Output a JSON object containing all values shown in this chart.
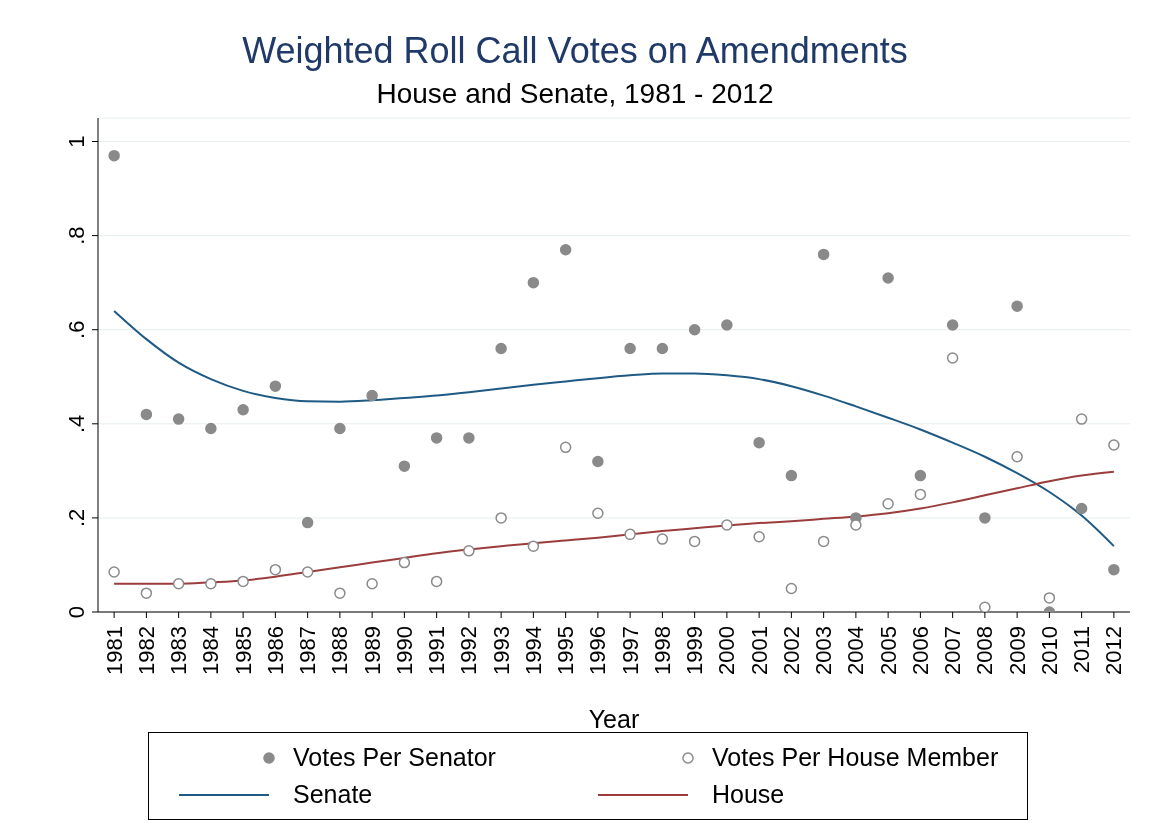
{
  "chart_data": {
    "type": "scatter",
    "title": "Weighted Roll Call Votes on Amendments",
    "subtitle": "House and Senate, 1981 - 2012",
    "xlabel": "Year",
    "categories": [
      "1981",
      "1982",
      "1983",
      "1984",
      "1985",
      "1986",
      "1987",
      "1988",
      "1989",
      "1990",
      "1991",
      "1992",
      "1993",
      "1994",
      "1995",
      "1996",
      "1997",
      "1998",
      "1999",
      "2000",
      "2001",
      "2002",
      "2003",
      "2004",
      "2005",
      "2006",
      "2007",
      "2008",
      "2009",
      "2010",
      "2011",
      "2012"
    ],
    "series": [
      {
        "name": "Votes Per Senator",
        "marker": "circle",
        "color": "#8a8a8a",
        "values": [
          0.97,
          0.42,
          0.41,
          0.39,
          0.43,
          0.48,
          0.19,
          0.39,
          0.46,
          0.31,
          0.37,
          0.37,
          0.56,
          0.7,
          0.77,
          0.32,
          0.56,
          0.56,
          0.6,
          0.61,
          0.36,
          0.29,
          0.76,
          0.2,
          0.71,
          0.29,
          0.61,
          0.2,
          0.65,
          0.0,
          0.22,
          0.09
        ]
      },
      {
        "name": "Votes Per House Member",
        "marker": "circle",
        "color": "#8a8a8a",
        "values": [
          0.085,
          0.04,
          0.06,
          0.06,
          0.065,
          0.09,
          0.085,
          0.04,
          0.06,
          0.105,
          0.065,
          0.13,
          0.2,
          0.14,
          0.35,
          0.21,
          0.165,
          0.155,
          0.15,
          0.185,
          0.16,
          0.05,
          0.15,
          0.185,
          0.23,
          0.25,
          0.54,
          0.01,
          0.33,
          0.03,
          0.41,
          0.355
        ]
      },
      {
        "name": "Senate",
        "type": "line",
        "marker": "none",
        "color": "#1f5a85",
        "values": [
          0.64,
          0.58,
          0.53,
          0.495,
          0.47,
          0.455,
          0.448,
          0.447,
          0.45,
          0.455,
          0.46,
          0.467,
          0.475,
          0.483,
          0.49,
          0.497,
          0.503,
          0.507,
          0.507,
          0.503,
          0.495,
          0.48,
          0.46,
          0.437,
          0.413,
          0.388,
          0.36,
          0.33,
          0.295,
          0.255,
          0.205,
          0.14
        ]
      },
      {
        "name": "House",
        "type": "line",
        "marker": "none",
        "color": "#9b3d3d",
        "values": [
          0.06,
          0.06,
          0.06,
          0.063,
          0.067,
          0.075,
          0.085,
          0.095,
          0.105,
          0.115,
          0.125,
          0.133,
          0.14,
          0.146,
          0.152,
          0.158,
          0.165,
          0.172,
          0.178,
          0.184,
          0.189,
          0.193,
          0.198,
          0.203,
          0.21,
          0.22,
          0.233,
          0.248,
          0.263,
          0.278,
          0.29,
          0.298
        ]
      }
    ],
    "ylim": [
      0,
      1.05
    ],
    "yticks": [
      0,
      {
        "value": 0.2,
        "label": ".2"
      },
      {
        "value": 0.4,
        "label": ".4"
      },
      {
        "value": 0.6,
        "label": ".6"
      },
      {
        "value": 0.8,
        "label": ".8"
      },
      1
    ],
    "grid": "y",
    "legend": "bottom"
  }
}
